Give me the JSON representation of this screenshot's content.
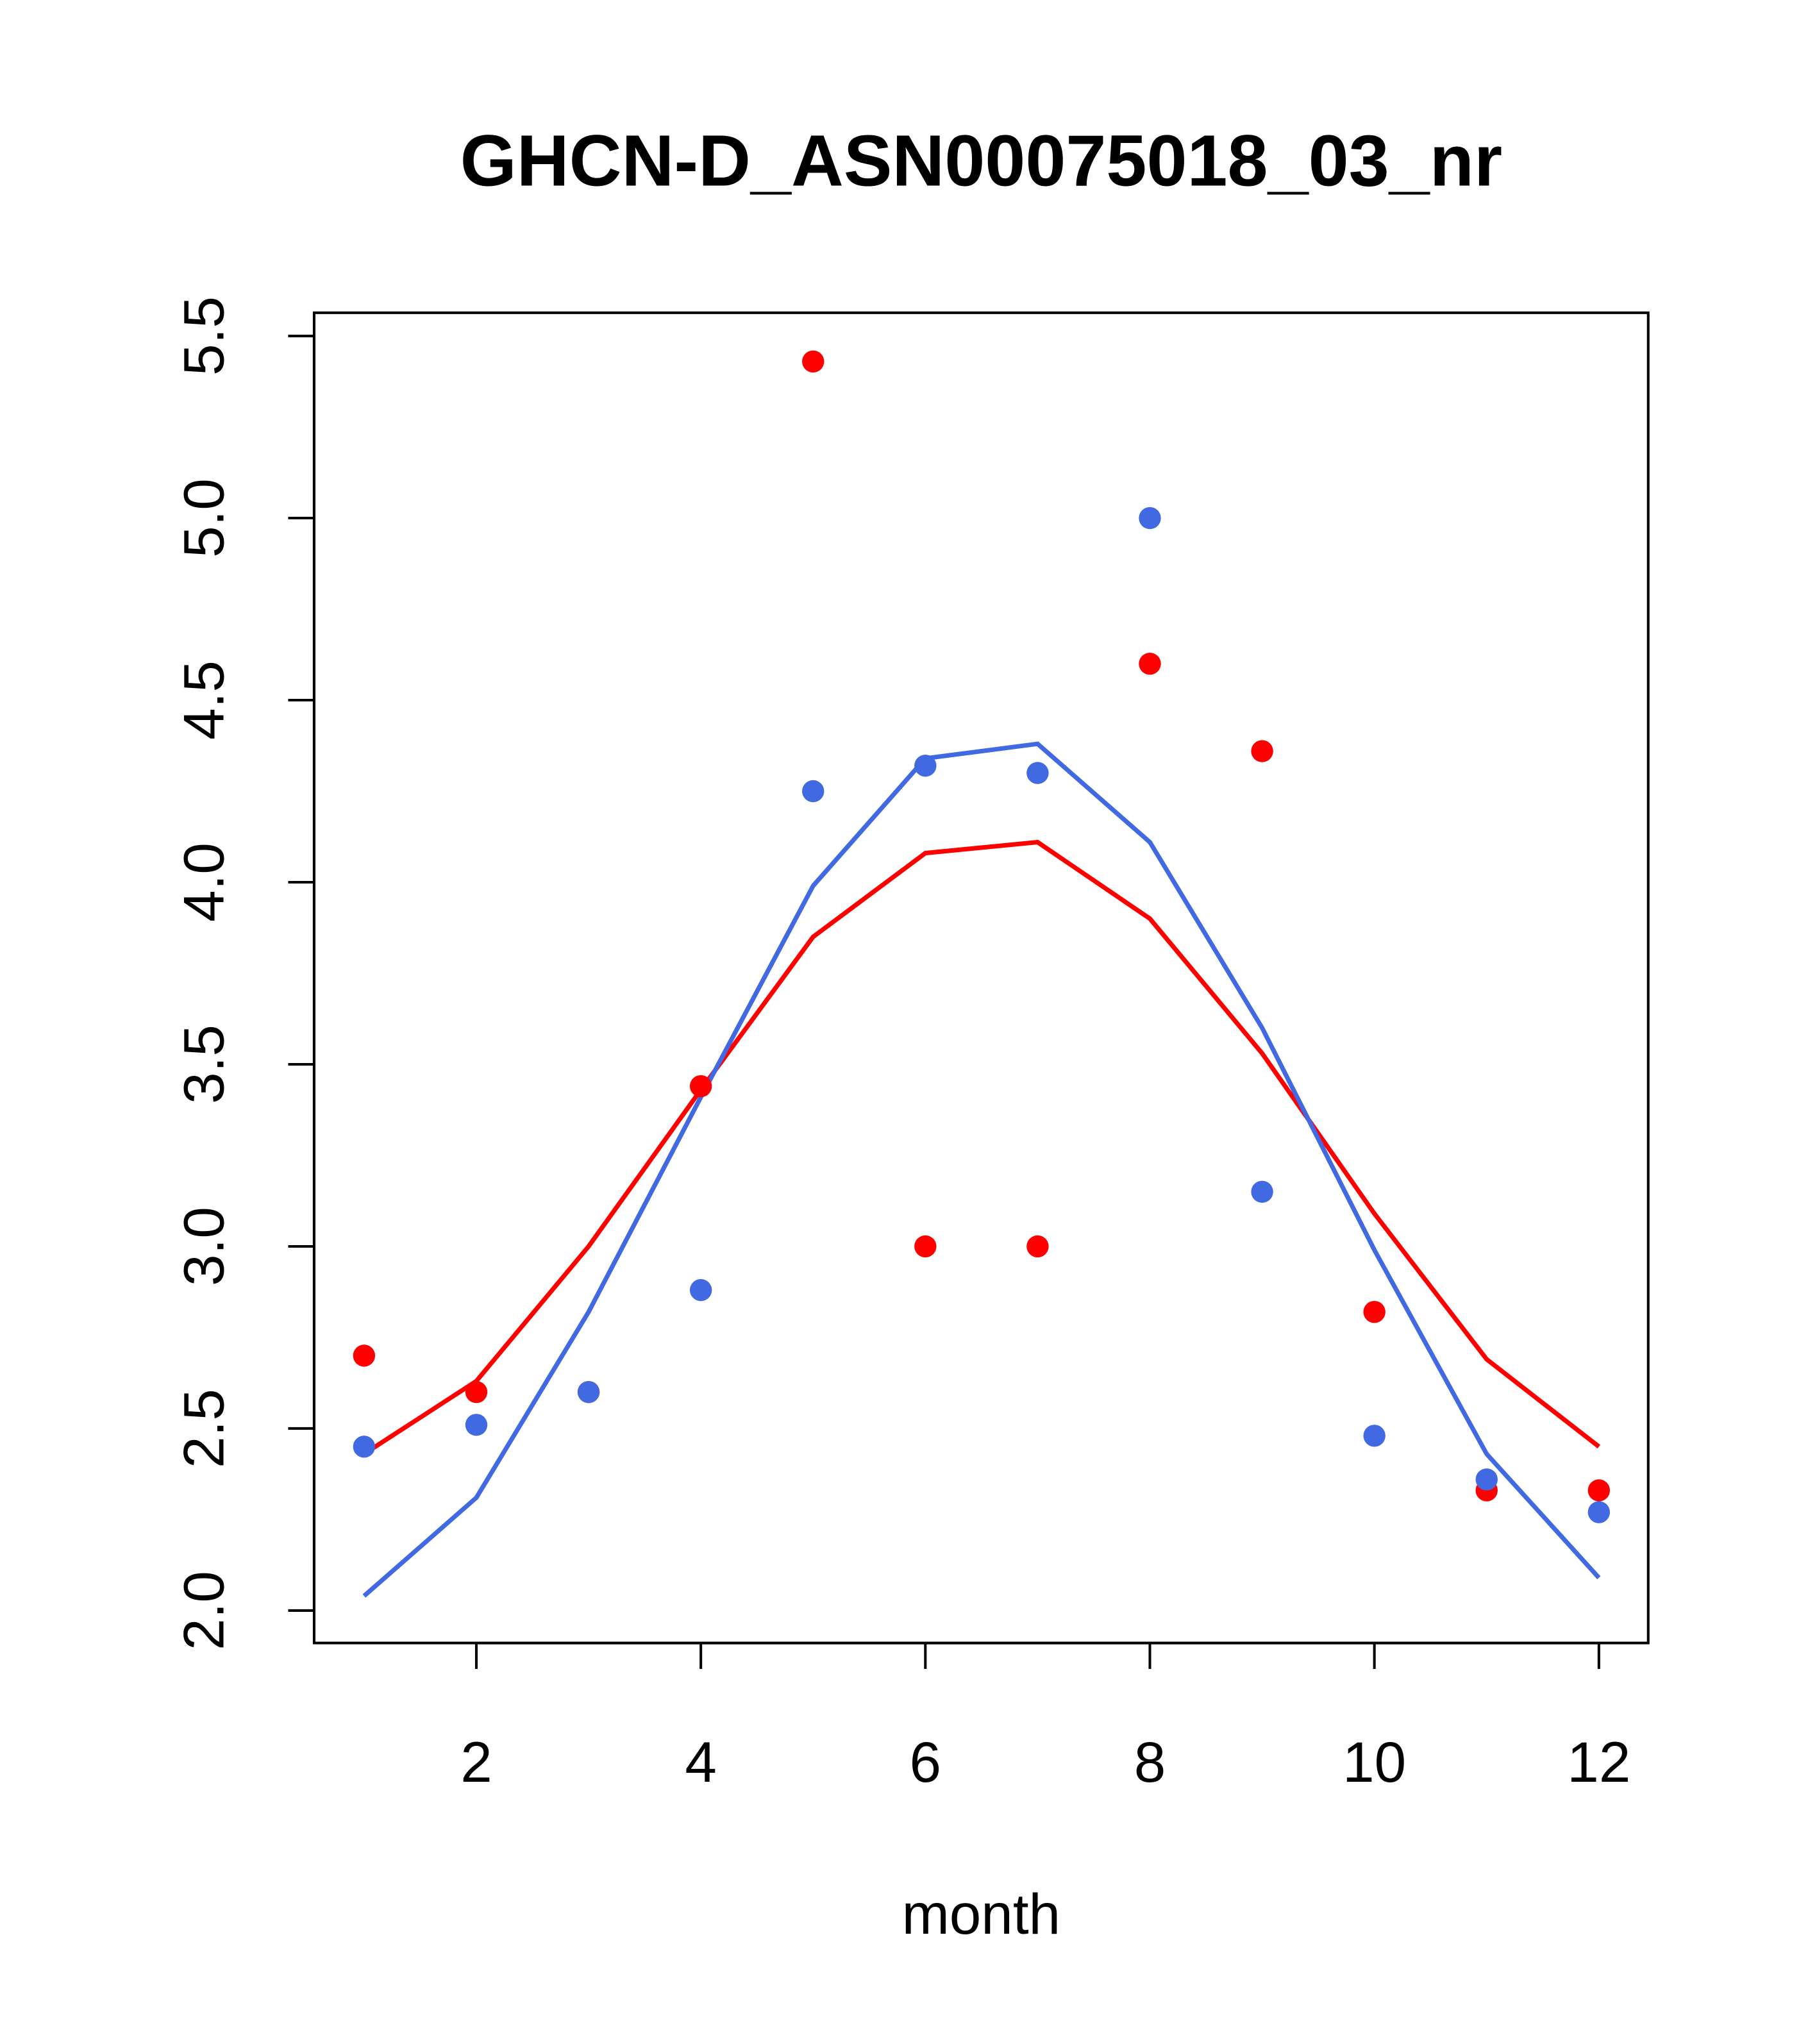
{
  "chart_data": {
    "type": "scatter",
    "title": "GHCN-D_ASN00075018_03_nr",
    "xlabel": "month",
    "ylabel": "",
    "xlim": [
      0.78,
      12.44
    ],
    "ylim": [
      1.93,
      5.57
    ],
    "x_ticks": [
      2,
      4,
      6,
      8,
      10,
      12
    ],
    "x_tick_labels": [
      "2",
      "4",
      "6",
      "8",
      "10",
      "12"
    ],
    "y_ticks": [
      2.0,
      2.5,
      3.0,
      3.5,
      4.0,
      4.5,
      5.0,
      5.5
    ],
    "y_tick_labels": [
      "2.0",
      "2.5",
      "3.0",
      "3.5",
      "4.0",
      "4.5",
      "5.0",
      "5.5"
    ],
    "grid": false,
    "x": [
      1,
      2,
      3,
      4,
      5,
      6,
      7,
      8,
      9,
      10,
      11,
      12
    ],
    "series": [
      {
        "name": "red points",
        "kind": "points",
        "color": "#ff0000",
        "values": [
          2.7,
          2.6,
          2.6,
          3.44,
          5.43,
          3.0,
          3.0,
          4.6,
          4.36,
          2.82,
          2.33,
          2.33
        ]
      },
      {
        "name": "blue points",
        "kind": "points",
        "color": "#4169e1",
        "values": [
          2.45,
          2.51,
          2.6,
          2.88,
          4.25,
          4.32,
          4.3,
          5.0,
          3.15,
          2.48,
          2.36,
          2.27
        ]
      },
      {
        "name": "red line",
        "kind": "line",
        "color": "#ff0000",
        "values": [
          2.43,
          2.63,
          3.0,
          3.43,
          3.85,
          4.08,
          4.11,
          3.9,
          3.53,
          3.09,
          2.69,
          2.45
        ]
      },
      {
        "name": "blue line",
        "kind": "line",
        "color": "#4169e1",
        "values": [
          2.04,
          2.31,
          2.82,
          3.41,
          3.99,
          4.34,
          4.38,
          4.11,
          3.6,
          2.99,
          2.43,
          2.09
        ]
      }
    ]
  }
}
